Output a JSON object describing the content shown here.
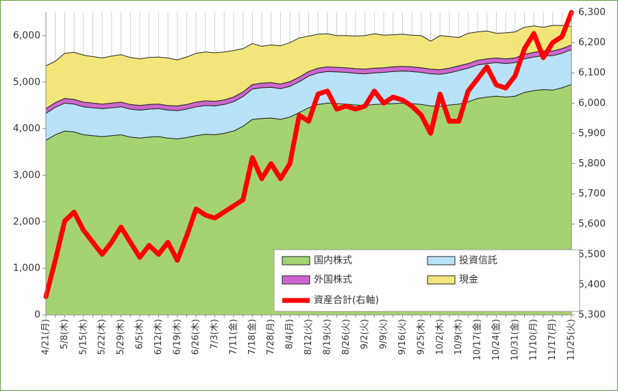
{
  "chart_data": {
    "type": "stacked_area_line",
    "categories": [
      "4/21(月)",
      null,
      "5/8(木)",
      null,
      "5/15(木)",
      null,
      "5/22(木)",
      null,
      "5/29(木)",
      null,
      "6/5(木)",
      null,
      "6/12(木)",
      null,
      "6/19(木)",
      null,
      "6/26(木)",
      null,
      "7/3(木)",
      null,
      "7/11(金)",
      null,
      "7/18(金)",
      null,
      "7/28(月)",
      null,
      "8/4(月)",
      null,
      "8/12(火)",
      null,
      "8/19(火)",
      null,
      "8/26(火)",
      null,
      "9/2(火)",
      null,
      "9/9(火)",
      null,
      "9/16(火)",
      null,
      "9/25(木)",
      null,
      "10/2(木)",
      null,
      "10/9(木)",
      null,
      "10/17(金)",
      null,
      "10/24(金)",
      null,
      "10/31(金)",
      null,
      "11/10(月)",
      null,
      "11/17(月)",
      null,
      "11/25(火)"
    ],
    "series": [
      {
        "name": "国内株式",
        "color": "#a6d372",
        "values": [
          3750,
          3870,
          3950,
          3930,
          3870,
          3850,
          3830,
          3850,
          3870,
          3820,
          3800,
          3820,
          3830,
          3800,
          3780,
          3810,
          3850,
          3880,
          3870,
          3900,
          3950,
          4050,
          4200,
          4220,
          4230,
          4200,
          4250,
          4350,
          4450,
          4520,
          4550,
          4540,
          4530,
          4510,
          4500,
          4520,
          4530,
          4540,
          4550,
          4540,
          4520,
          4490,
          4480,
          4510,
          4530,
          4580,
          4650,
          4680,
          4700,
          4680,
          4700,
          4780,
          4820,
          4840,
          4830,
          4880,
          4950
        ]
      },
      {
        "name": "投資信託",
        "color": "#b8e2f8",
        "values": [
          580,
          590,
          600,
          600,
          600,
          600,
          600,
          600,
          600,
          600,
          600,
          600,
          600,
          600,
          610,
          610,
          620,
          620,
          620,
          620,
          630,
          640,
          650,
          660,
          660,
          660,
          660,
          660,
          680,
          680,
          680,
          680,
          680,
          680,
          680,
          680,
          680,
          690,
          690,
          690,
          690,
          690,
          690,
          690,
          720,
          720,
          720,
          720,
          720,
          720,
          720,
          720,
          720,
          730,
          740,
          740,
          750
        ]
      },
      {
        "name": "外国株式",
        "color": "#cc66cc",
        "values": [
          100,
          100,
          100,
          100,
          100,
          100,
          100,
          100,
          100,
          100,
          100,
          100,
          100,
          100,
          100,
          100,
          100,
          100,
          100,
          100,
          100,
          100,
          100,
          100,
          100,
          100,
          100,
          100,
          100,
          100,
          100,
          100,
          100,
          100,
          100,
          100,
          100,
          100,
          100,
          100,
          100,
          100,
          100,
          100,
          100,
          100,
          100,
          100,
          100,
          100,
          100,
          100,
          100,
          100,
          100,
          100,
          100
        ]
      },
      {
        "name": "現金",
        "color": "#f2e67a",
        "values": [
          920,
          890,
          970,
          1010,
          1010,
          1000,
          990,
          1010,
          1020,
          1010,
          1000,
          1010,
          1010,
          1020,
          990,
          1020,
          1050,
          1050,
          1040,
          1030,
          1000,
          930,
          880,
          790,
          810,
          820,
          840,
          840,
          760,
          730,
          710,
          680,
          690,
          700,
          720,
          740,
          700,
          690,
          690,
          680,
          690,
          600,
          730,
          680,
          610,
          650,
          610,
          600,
          530,
          560,
          560,
          580,
          570,
          510,
          550,
          500,
          400
        ]
      },
      {
        "name": "資産合計(右軸)",
        "color": "#ff0000",
        "axis": "y2",
        "values": [
          5360,
          5480,
          5610,
          5640,
          5580,
          5540,
          5500,
          5540,
          5590,
          5540,
          5490,
          5530,
          5500,
          5540,
          5480,
          5560,
          5650,
          5630,
          5620,
          5640,
          5660,
          5680,
          5820,
          5750,
          5800,
          5750,
          5800,
          5960,
          5940,
          6030,
          6040,
          5980,
          5990,
          5980,
          5990,
          6040,
          6000,
          6020,
          6010,
          5990,
          5960,
          5900,
          6030,
          5940,
          5940,
          6040,
          6080,
          6120,
          6060,
          6050,
          6090,
          6180,
          6230,
          6150,
          6200,
          6220,
          6300
        ]
      }
    ],
    "ylim": [
      0,
      6500
    ],
    "yticks": [
      0,
      {
        "value": 1000,
        "label": "1,000"
      },
      {
        "value": 2000,
        "label": "2,000"
      },
      {
        "value": 3000,
        "label": "3,000"
      },
      {
        "value": 4000,
        "label": "4,000"
      },
      {
        "value": 5000,
        "label": "5,000"
      },
      {
        "value": 6000,
        "label": "6,000"
      }
    ],
    "y2lim": [
      5300,
      6300
    ],
    "y2ticks": [
      {
        "value": 5300,
        "label": "5,300"
      },
      {
        "value": 5400,
        "label": "5,400"
      },
      {
        "value": 5500,
        "label": "5,500"
      },
      {
        "value": 5600,
        "label": "5,600"
      },
      {
        "value": 5700,
        "label": "5,700"
      },
      {
        "value": 5800,
        "label": "5,800"
      },
      {
        "value": 5900,
        "label": "5,900"
      },
      {
        "value": 6000,
        "label": "6,000"
      },
      {
        "value": 6100,
        "label": "6,100"
      },
      {
        "value": 6200,
        "label": "6,200"
      },
      {
        "value": 6300,
        "label": "6,300"
      }
    ],
    "xgrid": true,
    "legend": "bottom-right"
  }
}
